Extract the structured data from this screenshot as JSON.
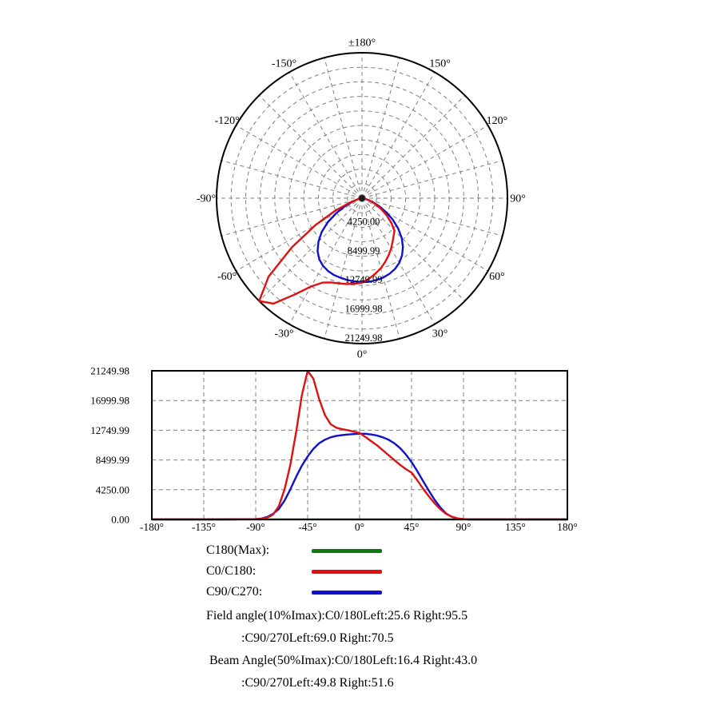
{
  "page": {
    "background": "#ffffff"
  },
  "legend": {
    "items": [
      {
        "label": "C180(Max):",
        "color": "#117711"
      },
      {
        "label": "C0/C180:",
        "color": "#dd1111"
      },
      {
        "label": "C90/C270:",
        "color": "#1111cc"
      }
    ]
  },
  "notes": {
    "lines": [
      "Field angle(10%Imax):C0/180Left:25.6 Right:95.5",
      ":C90/270Left:69.0 Right:70.5",
      "Beam Angle(50%Imax):C0/180Left:16.4 Right:43.0",
      ":C90/270Left:49.8 Right:51.6"
    ]
  },
  "chart_data": [
    {
      "type": "polar-line",
      "orientation": "0deg-at-bottom, positive-clockwise-to-right",
      "rmax": 21249.98,
      "rings": 10,
      "ring_step": 2125.0,
      "grid_spoke_step_deg": 15,
      "grid_color": "#7f7f7f",
      "angle_ticks": [
        {
          "deg": 180,
          "label": "±180°"
        },
        {
          "deg": -150,
          "label": "-150°"
        },
        {
          "deg": 150,
          "label": "150°"
        },
        {
          "deg": -120,
          "label": "-120°"
        },
        {
          "deg": 120,
          "label": "120°"
        },
        {
          "deg": -90,
          "label": "-90°"
        },
        {
          "deg": 90,
          "label": "90°"
        },
        {
          "deg": -60,
          "label": "-60°"
        },
        {
          "deg": 60,
          "label": "60°"
        },
        {
          "deg": -30,
          "label": "-30°"
        },
        {
          "deg": 30,
          "label": "30°"
        },
        {
          "deg": 0,
          "label": "0°"
        }
      ],
      "ring_labels": [
        {
          "value": 4250.0,
          "label": "4250.00"
        },
        {
          "value": 8499.99,
          "label": "8499.99"
        },
        {
          "value": 12749.99,
          "label": "12749.99"
        },
        {
          "value": 16999.98,
          "label": "16999.98"
        },
        {
          "value": 21249.98,
          "label": "21249.98"
        }
      ],
      "x_deg": [
        -180,
        -120,
        -90,
        -85,
        -80,
        -75,
        -70,
        -65,
        -60,
        -55,
        -50,
        -45,
        -40,
        -35,
        -30,
        -25,
        -20,
        -15,
        -10,
        -5,
        0,
        5,
        10,
        15,
        20,
        25,
        30,
        35,
        40,
        45,
        50,
        55,
        60,
        65,
        70,
        75,
        80,
        85,
        90,
        95,
        100,
        120,
        180
      ],
      "series": [
        {
          "name": "C180(Max)",
          "color": "#117711",
          "values": [
            0,
            0,
            0,
            0,
            0,
            0,
            0,
            0,
            0,
            0,
            0,
            0,
            0,
            0,
            0,
            0,
            0,
            0,
            0,
            0,
            0,
            0,
            0,
            0,
            0,
            0,
            0,
            0,
            0,
            0,
            0,
            0,
            0,
            0,
            0,
            0,
            0,
            0,
            0,
            0,
            0,
            0,
            0
          ]
        },
        {
          "name": "C90/C270",
          "color": "#1111cc",
          "values": [
            0,
            0,
            40,
            120,
            350,
            800,
            1500,
            2700,
            4300,
            6100,
            7700,
            9000,
            10100,
            10900,
            11400,
            11750,
            11950,
            12050,
            12150,
            12200,
            12250,
            12250,
            12150,
            12000,
            11750,
            11400,
            10900,
            10200,
            9300,
            8200,
            6900,
            5500,
            4100,
            2800,
            1700,
            850,
            350,
            120,
            40,
            0,
            0,
            0,
            0
          ]
        },
        {
          "name": "C0/C180",
          "color": "#dd1111",
          "values": [
            0,
            0,
            30,
            80,
            250,
            700,
            1900,
            4300,
            7800,
            12500,
            17800,
            21250,
            20100,
            17200,
            14900,
            13600,
            13100,
            12900,
            12750,
            12550,
            12350,
            11800,
            11200,
            10600,
            9900,
            9200,
            8500,
            7800,
            7200,
            6700,
            5600,
            4400,
            3300,
            2300,
            1450,
            800,
            380,
            150,
            50,
            0,
            0,
            0,
            0
          ]
        }
      ]
    },
    {
      "type": "line",
      "xlim": [
        -180,
        180
      ],
      "ylim": [
        0,
        21249.98
      ],
      "grid": "dashed",
      "grid_color": "#7f7f7f",
      "xticks": [
        {
          "deg": -180,
          "label": "-180°"
        },
        {
          "deg": -135,
          "label": "-135°"
        },
        {
          "deg": -90,
          "label": "-90°"
        },
        {
          "deg": -45,
          "label": "-45°"
        },
        {
          "deg": 0,
          "label": "0°"
        },
        {
          "deg": 45,
          "label": "45°"
        },
        {
          "deg": 90,
          "label": "90°"
        },
        {
          "deg": 135,
          "label": "135°"
        },
        {
          "deg": 180,
          "label": "180°"
        }
      ],
      "yticks": [
        {
          "value": 0,
          "label": "0.00"
        },
        {
          "value": 4250.0,
          "label": "4250.00"
        },
        {
          "value": 8499.99,
          "label": "8499.99"
        },
        {
          "value": 12749.99,
          "label": "12749.99"
        },
        {
          "value": 16999.98,
          "label": "16999.98"
        },
        {
          "value": 21249.98,
          "label": "21249.98"
        }
      ],
      "x_deg": [
        -180,
        -120,
        -90,
        -85,
        -80,
        -75,
        -70,
        -65,
        -60,
        -55,
        -50,
        -45,
        -40,
        -35,
        -30,
        -25,
        -20,
        -15,
        -10,
        -5,
        0,
        5,
        10,
        15,
        20,
        25,
        30,
        35,
        40,
        45,
        50,
        55,
        60,
        65,
        70,
        75,
        80,
        85,
        90,
        95,
        100,
        120,
        180
      ],
      "series": [
        {
          "name": "C180(Max)",
          "color": "#117711",
          "values": [
            0,
            0,
            0,
            0,
            0,
            0,
            0,
            0,
            0,
            0,
            0,
            0,
            0,
            0,
            0,
            0,
            0,
            0,
            0,
            0,
            0,
            0,
            0,
            0,
            0,
            0,
            0,
            0,
            0,
            0,
            0,
            0,
            0,
            0,
            0,
            0,
            0,
            0,
            0,
            0,
            0,
            0,
            0
          ]
        },
        {
          "name": "C90/C270",
          "color": "#1111cc",
          "values": [
            0,
            0,
            40,
            120,
            350,
            800,
            1500,
            2700,
            4300,
            6100,
            7700,
            9000,
            10100,
            10900,
            11400,
            11750,
            11950,
            12050,
            12150,
            12200,
            12250,
            12250,
            12150,
            12000,
            11750,
            11400,
            10900,
            10200,
            9300,
            8200,
            6900,
            5500,
            4100,
            2800,
            1700,
            850,
            350,
            120,
            40,
            0,
            0,
            0,
            0
          ]
        },
        {
          "name": "C0/C180",
          "color": "#dd1111",
          "values": [
            0,
            0,
            30,
            80,
            250,
            700,
            1900,
            4300,
            7800,
            12500,
            17800,
            21250,
            20100,
            17200,
            14900,
            13600,
            13100,
            12900,
            12750,
            12550,
            12350,
            11800,
            11200,
            10600,
            9900,
            9200,
            8500,
            7800,
            7200,
            6700,
            5600,
            4400,
            3300,
            2300,
            1450,
            800,
            380,
            150,
            50,
            0,
            0,
            0,
            0
          ]
        }
      ]
    }
  ]
}
